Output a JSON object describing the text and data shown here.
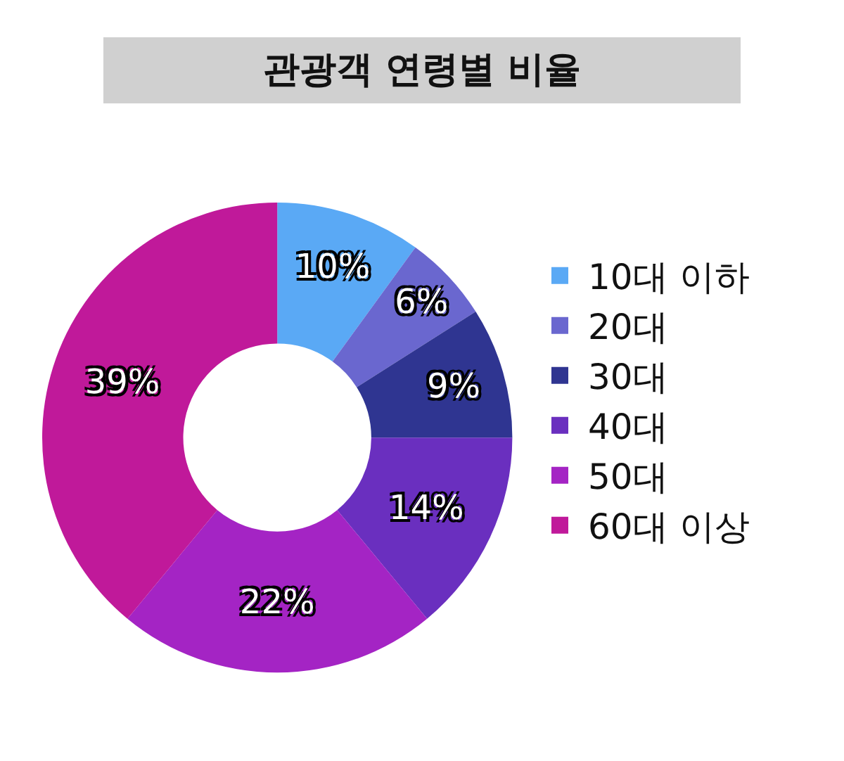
{
  "chart_data": {
    "type": "donut",
    "title": "관광객 연령별 비율",
    "categories": [
      "10대 이하",
      "20대",
      "30대",
      "40대",
      "50대",
      "60대 이상"
    ],
    "values": [
      10,
      6,
      9,
      14,
      22,
      39
    ],
    "value_labels": [
      "10%",
      "6%",
      "9%",
      "14%",
      "22%",
      "39%"
    ],
    "colors": [
      "#5aa9f5",
      "#6a67cf",
      "#2f3591",
      "#6a2fbf",
      "#a424c4",
      "#c0199a"
    ],
    "legend": "right"
  }
}
